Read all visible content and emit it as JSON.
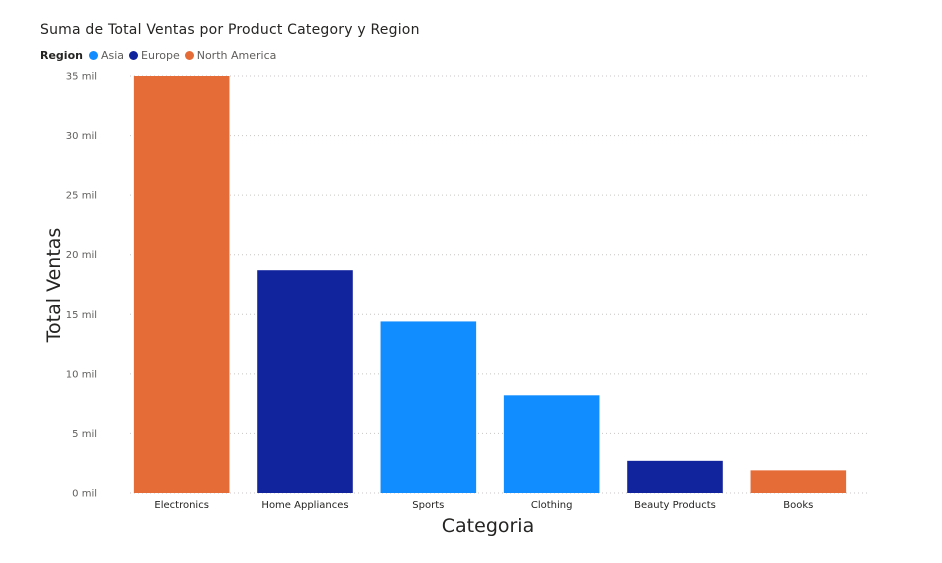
{
  "chart_data": {
    "type": "bar",
    "title": "Suma de Total Ventas por Product Category y Region",
    "legend_title": "Region",
    "legend_placement": "top-left",
    "legend": [
      {
        "name": "Asia",
        "color": "#118DFF"
      },
      {
        "name": "Europe",
        "color": "#12239E"
      },
      {
        "name": "North America",
        "color": "#E66C37"
      }
    ],
    "xlabel": "Categoria",
    "ylabel": "Total Ventas",
    "ylim": [
      0,
      35000
    ],
    "yticks": [
      {
        "value": 0,
        "label": "0 mil"
      },
      {
        "value": 5000,
        "label": "5 mil"
      },
      {
        "value": 10000,
        "label": "10 mil"
      },
      {
        "value": 15000,
        "label": "15 mil"
      },
      {
        "value": 20000,
        "label": "20 mil"
      },
      {
        "value": 25000,
        "label": "25 mil"
      },
      {
        "value": 30000,
        "label": "30 mil"
      },
      {
        "value": 35000,
        "label": "35 mil"
      }
    ],
    "grid": true,
    "categories": [
      "Electronics",
      "Home Appliances",
      "Sports",
      "Clothing",
      "Beauty Products",
      "Books"
    ],
    "values": [
      35000,
      18700,
      14400,
      8200,
      2700,
      1900
    ],
    "regions": [
      "North America",
      "Europe",
      "Asia",
      "Asia",
      "Europe",
      "North America"
    ]
  }
}
